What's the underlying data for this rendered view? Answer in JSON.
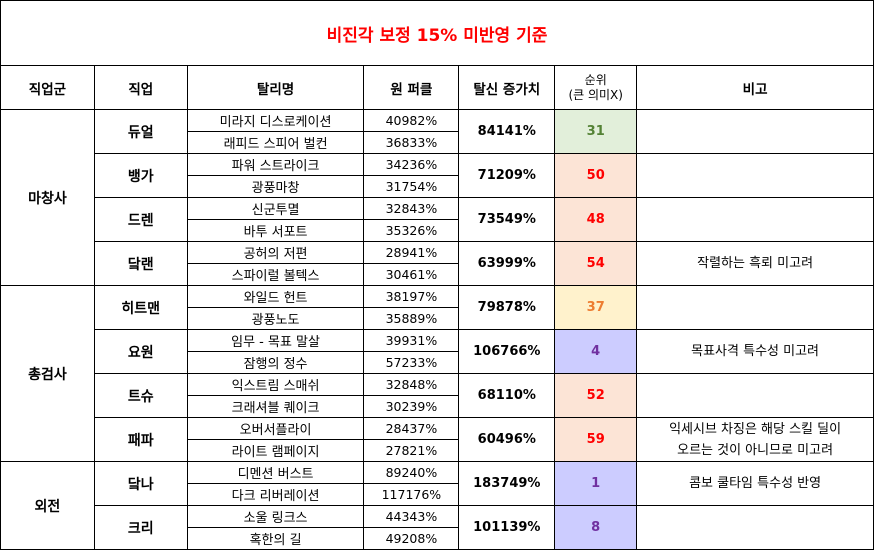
{
  "title": "비진각 보정 15% 미반영 기준",
  "headers": {
    "group": "직업군",
    "job": "직업",
    "skill": "탈리명",
    "base": "원 퍼클",
    "increase": "탈신 증가치",
    "rank_line1": "순위",
    "rank_line2": "(큰 의미X)",
    "note": "비고"
  },
  "groups": [
    {
      "name": "마창사",
      "jobs": [
        {
          "name": "듀얼",
          "increase": "84141%",
          "rank": "31",
          "rank_bg": "#e2efda",
          "rank_color": "#548235",
          "skills": [
            {
              "name": "미라지 디스로케이션",
              "value": "40982%"
            },
            {
              "name": "래피드 스피어 벌컨",
              "value": "36833%"
            }
          ]
        },
        {
          "name": "뱅가",
          "increase": "71209%",
          "rank": "50",
          "rank_bg": "#fce4d6",
          "rank_color": "#ff0000",
          "skills": [
            {
              "name": "파워 스트라이크",
              "value": "34236%"
            },
            {
              "name": "광풍마창",
              "value": "31754%"
            }
          ]
        },
        {
          "name": "드렌",
          "increase": "73549%",
          "rank": "48",
          "rank_bg": "#fce4d6",
          "rank_color": "#ff0000",
          "skills": [
            {
              "name": "신군투멸",
              "value": "32843%"
            },
            {
              "name": "바투 서포트",
              "value": "35326%"
            }
          ]
        },
        {
          "name": "닼랜",
          "increase": "63999%",
          "rank": "54",
          "rank_bg": "#fce4d6",
          "rank_color": "#ff0000",
          "skills": [
            {
              "name": "공허의 저편",
              "value": "28941%"
            },
            {
              "name": "스파이럴 볼텍스",
              "value": "30461%"
            }
          ]
        }
      ]
    },
    {
      "name": "총검사",
      "jobs": [
        {
          "name": "히트맨",
          "increase": "79878%",
          "rank": "37",
          "rank_bg": "#fff2cc",
          "rank_color": "#ed7d31",
          "skills": [
            {
              "name": "와일드 헌트",
              "value": "38197%"
            },
            {
              "name": "광풍노도",
              "value": "35889%"
            }
          ]
        },
        {
          "name": "요원",
          "increase": "106766%",
          "rank": "4",
          "rank_bg": "#ccccff",
          "rank_color": "#7030a0",
          "skills": [
            {
              "name": "임무 - 목표 말살",
              "value": "39931%"
            },
            {
              "name": "잠행의 정수",
              "value": "57233%"
            }
          ]
        },
        {
          "name": "트슈",
          "increase": "68110%",
          "rank": "52",
          "rank_bg": "#fce4d6",
          "rank_color": "#ff0000",
          "skills": [
            {
              "name": "익스트림 스매쉬",
              "value": "32848%"
            },
            {
              "name": "크래셔블 퀘이크",
              "value": "30239%"
            }
          ]
        },
        {
          "name": "패파",
          "increase": "60496%",
          "rank": "59",
          "rank_bg": "#fce4d6",
          "rank_color": "#ff0000",
          "skills": [
            {
              "name": "오버서플라이",
              "value": "28437%"
            },
            {
              "name": "라이트 램페이지",
              "value": "27821%"
            }
          ]
        }
      ]
    },
    {
      "name": "외전",
      "jobs": [
        {
          "name": "닼나",
          "increase": "183749%",
          "rank": "1",
          "rank_bg": "#ccccff",
          "rank_color": "#7030a0",
          "skills": [
            {
              "name": "디멘션 버스트",
              "value": "89240%"
            },
            {
              "name": "다크 리버레이션",
              "value": "117176%"
            }
          ]
        },
        {
          "name": "크리",
          "increase": "101139%",
          "rank": "8",
          "rank_bg": "#ccccff",
          "rank_color": "#7030a0",
          "skills": [
            {
              "name": "소울 링크스",
              "value": "44343%"
            },
            {
              "name": "혹한의 길",
              "value": "49208%"
            }
          ]
        }
      ]
    }
  ],
  "notes": {
    "note_1": "작렬하는 흑뢰 미고려",
    "note_2": "목표사격 특수성 미고려",
    "note_3_line1": "익세시브 차징은 해당 스킬 딜이",
    "note_3_line2": "오르는 것이 아니므로 미고려",
    "note_4": "콤보 쿨타임 특수성 반영"
  }
}
